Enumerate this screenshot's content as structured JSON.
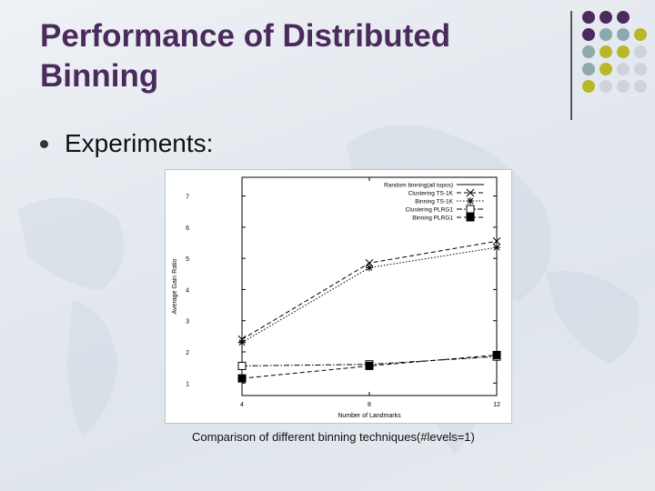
{
  "slide": {
    "title": "Performance of Distributed Binning",
    "bullet": "Experiments:",
    "caption": "Comparison of different binning techniques(#levels=1)"
  },
  "colors": {
    "title": "#4b2a5c",
    "purple": "#4b2a5c",
    "teal": "#8ea8ad",
    "olive": "#b9b62a",
    "lavender": "#cfd2dd"
  },
  "dot_grid": [
    [
      "purple",
      "purple",
      "purple",
      "none"
    ],
    [
      "purple",
      "teal",
      "teal",
      "olive"
    ],
    [
      "teal",
      "olive",
      "olive",
      "lavender"
    ],
    [
      "teal",
      "olive",
      "lavender",
      "lavender"
    ],
    [
      "olive",
      "lavender",
      "lavender",
      "lavender"
    ]
  ],
  "chart_data": {
    "type": "line",
    "xlabel": "Number of Landmarks",
    "ylabel": "Average Gain Ratio",
    "x": [
      4,
      8,
      12
    ],
    "xlim": [
      4,
      12
    ],
    "ylim": [
      0.6,
      7.6
    ],
    "xticks": [
      4,
      8,
      12
    ],
    "yticks": [
      1,
      2,
      3,
      4,
      5,
      6,
      7
    ],
    "legend_position": "top-right",
    "series": [
      {
        "name": "Random binning(all topos)",
        "values": [
          null,
          null,
          null
        ],
        "marker": "none",
        "dash": "solid"
      },
      {
        "name": "Clustering TS-1K",
        "values": [
          2.4,
          4.85,
          5.55
        ],
        "marker": "x",
        "dash": "dashed"
      },
      {
        "name": "Binning TS-1K",
        "values": [
          2.3,
          4.7,
          5.35
        ],
        "marker": "star",
        "dash": "dotted"
      },
      {
        "name": "Clustering PLRG1",
        "values": [
          1.55,
          1.6,
          1.85
        ],
        "marker": "square-open",
        "dash": "dashdot"
      },
      {
        "name": "Binning PLRG1",
        "values": [
          1.15,
          1.55,
          1.9
        ],
        "marker": "square-filled",
        "dash": "dashed"
      }
    ]
  }
}
